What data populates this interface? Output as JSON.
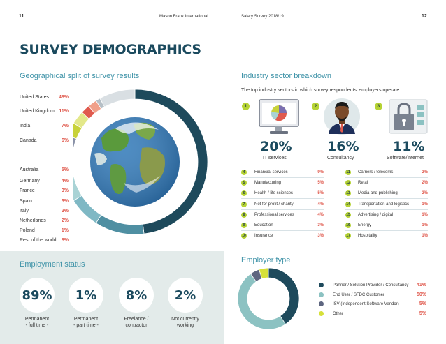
{
  "header": {
    "page_left": "11",
    "left_title": "Mason Frank International",
    "right_title": "Salary Survey 2018/19",
    "page_right": "12"
  },
  "title": "SURVEY DEMOGRAPHICS",
  "geo": {
    "title": "Geographical split of survey results",
    "items": [
      {
        "label": "United States",
        "pct": "48%"
      },
      {
        "label": "United Kingdom",
        "pct": "11%"
      },
      {
        "label": "India",
        "pct": "7%"
      },
      {
        "label": "Canada",
        "pct": "6%"
      },
      {
        "label": "Australia",
        "pct": "5%"
      },
      {
        "label": "Germany",
        "pct": "4%"
      },
      {
        "label": "France",
        "pct": "3%"
      },
      {
        "label": "Spain",
        "pct": "3%"
      },
      {
        "label": "Italy",
        "pct": "2%"
      },
      {
        "label": "Netherlands",
        "pct": "2%"
      },
      {
        "label": "Poland",
        "pct": "1%"
      },
      {
        "label": "Rest of the world",
        "pct": "8%"
      }
    ],
    "ring_values": [
      48,
      11,
      7,
      6,
      5,
      4,
      3,
      3,
      2,
      2,
      1,
      8
    ],
    "ring_colors": [
      "#1e4a5c",
      "#4f8fa2",
      "#7fb8c4",
      "#a9d3d5",
      "#55617c",
      "#8a92a8",
      "#c8d23a",
      "#e3e88a",
      "#e05a4e",
      "#f0a08a",
      "#b5bfc6",
      "#d9dfe3"
    ]
  },
  "industry": {
    "title": "Industry sector breakdown",
    "desc": "The top industry sectors in which survey respondents' employers operate.",
    "top": [
      {
        "num": "1",
        "pct": "20%",
        "label": "IT services",
        "icon": "monitor-pie-icon"
      },
      {
        "num": "2",
        "pct": "16%",
        "label": "Consultancy",
        "icon": "consultant-avatar-icon"
      },
      {
        "num": "3",
        "pct": "11%",
        "label": "Software/internet",
        "icon": "lock-software-icon"
      }
    ],
    "left": [
      {
        "num": "4",
        "name": "Financial services",
        "pct": "9%"
      },
      {
        "num": "5",
        "name": "Manufacturing",
        "pct": "5%"
      },
      {
        "num": "6",
        "name": "Health / life sciences",
        "pct": "5%"
      },
      {
        "num": "7",
        "name": "Not for profit / charity",
        "pct": "4%"
      },
      {
        "num": "8",
        "name": "Professional services",
        "pct": "4%"
      },
      {
        "num": "9",
        "name": "Education",
        "pct": "3%"
      },
      {
        "num": "10",
        "name": "Insurance",
        "pct": "3%"
      }
    ],
    "right": [
      {
        "num": "11",
        "name": "Carriers / telecoms",
        "pct": "2%"
      },
      {
        "num": "12",
        "name": "Retail",
        "pct": "2%"
      },
      {
        "num": "13",
        "name": "Media and publishing",
        "pct": "2%"
      },
      {
        "num": "14",
        "name": "Transportation and logistics",
        "pct": "1%"
      },
      {
        "num": "15",
        "name": "Advertising / digital",
        "pct": "1%"
      },
      {
        "num": "16",
        "name": "Energy",
        "pct": "1%"
      },
      {
        "num": "17",
        "name": "Hospitality",
        "pct": "1%"
      }
    ]
  },
  "employment": {
    "title": "Employment status",
    "items": [
      {
        "pct": "89%",
        "line1": "Permanent",
        "line2": "- full time -"
      },
      {
        "pct": "1%",
        "line1": "Permanent",
        "line2": "- part time -"
      },
      {
        "pct": "8%",
        "line1": "Freelance /",
        "line2": "contractor"
      },
      {
        "pct": "2%",
        "line1": "Not currently",
        "line2": "working"
      }
    ]
  },
  "employer": {
    "title": "Employer type",
    "items": [
      {
        "label": "Partner / Solution Provider / Consultancy",
        "pct": "41%",
        "color": "#1e4a5c"
      },
      {
        "label": "End User / SFDC Customer",
        "pct": "50%",
        "color": "#8cc2c2"
      },
      {
        "label": "ISV (Independent Software Vendor)",
        "pct": "5%",
        "color": "#5e6680"
      },
      {
        "label": "Other",
        "pct": "5%",
        "color": "#d6e03a"
      }
    ],
    "ring_values": [
      41,
      50,
      5,
      5
    ]
  }
}
